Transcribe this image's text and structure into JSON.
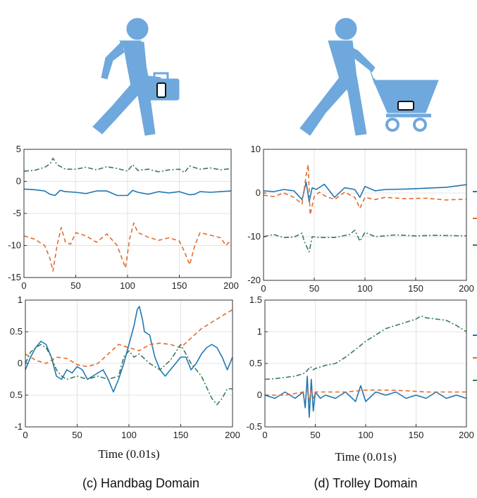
{
  "colors": {
    "series1": "#1f77b4",
    "series2": "#e36c2c",
    "series3": "#3a7a5a",
    "icon": "#6fa8dc",
    "grid": "#e3e3e3"
  },
  "icons": {
    "left": "walking-person-with-handbag-icon",
    "right": "walking-person-pushing-trolley-icon"
  },
  "captions": {
    "left": "(c) Handbag Domain",
    "right": "(d) Trolley Domain"
  },
  "chart_data": [
    {
      "type": "line",
      "panel": "top-left",
      "xlim": [
        0,
        200
      ],
      "ylim": [
        -15,
        5
      ],
      "xticks": [
        "0",
        "50",
        "100",
        "150",
        "200"
      ],
      "yticks": [
        "5",
        "0",
        "-5",
        "-10",
        "-15"
      ],
      "xlabel": "",
      "grid": true,
      "series": [
        {
          "style": "solid",
          "x": [
            0,
            10,
            20,
            25,
            30,
            35,
            40,
            50,
            60,
            70,
            80,
            90,
            100,
            105,
            110,
            120,
            130,
            140,
            150,
            160,
            165,
            170,
            180,
            190,
            200
          ],
          "values": [
            -1.2,
            -1.3,
            -1.5,
            -2.0,
            -2.2,
            -1.4,
            -1.6,
            -1.7,
            -1.9,
            -1.5,
            -1.5,
            -2.2,
            -2.2,
            -1.4,
            -1.7,
            -2.0,
            -1.6,
            -1.8,
            -1.6,
            -2.1,
            -2.0,
            -1.6,
            -1.7,
            -1.6,
            -1.5
          ]
        },
        {
          "style": "dashed",
          "x": [
            0,
            10,
            20,
            25,
            28,
            32,
            36,
            40,
            45,
            50,
            60,
            70,
            80,
            90,
            98,
            102,
            106,
            110,
            120,
            130,
            140,
            150,
            155,
            160,
            165,
            170,
            180,
            190,
            195,
            200
          ],
          "values": [
            -8.5,
            -9,
            -10,
            -12,
            -14,
            -10,
            -7.2,
            -9.5,
            -9.8,
            -8,
            -8.5,
            -9.5,
            -8.2,
            -10,
            -13.5,
            -9,
            -6.5,
            -8,
            -8.7,
            -9.2,
            -8.8,
            -9.3,
            -11,
            -13,
            -10,
            -8,
            -8.4,
            -8.8,
            -10,
            -9.2
          ]
        },
        {
          "style": "dashdot",
          "x": [
            0,
            10,
            20,
            25,
            28,
            32,
            40,
            50,
            60,
            70,
            80,
            90,
            100,
            105,
            110,
            120,
            130,
            140,
            150,
            155,
            160,
            170,
            180,
            190,
            200
          ],
          "values": [
            1.6,
            1.7,
            2.2,
            2.7,
            3.6,
            2.6,
            1.9,
            1.9,
            2.2,
            1.8,
            2.3,
            2.0,
            1.6,
            2.6,
            1.7,
            1.9,
            1.5,
            1.8,
            1.9,
            1.4,
            2.4,
            1.9,
            2.1,
            1.8,
            2.0
          ]
        }
      ]
    },
    {
      "type": "line",
      "panel": "top-right",
      "xlim": [
        0,
        200
      ],
      "ylim": [
        -20,
        10
      ],
      "xticks": [
        "0",
        "50",
        "100",
        "150",
        "200"
      ],
      "yticks": [
        "10",
        "0",
        "-10",
        "-20"
      ],
      "xlabel": "",
      "grid": true,
      "series": [
        {
          "style": "solid",
          "x": [
            0,
            10,
            20,
            30,
            38,
            42,
            45,
            48,
            52,
            60,
            70,
            80,
            90,
            95,
            100,
            110,
            120,
            140,
            160,
            180,
            200
          ],
          "values": [
            0.5,
            0.3,
            0.8,
            0.5,
            -1.5,
            2.5,
            -2,
            1.2,
            0.8,
            2,
            -1,
            1.2,
            0.8,
            -1,
            1.5,
            0.5,
            0.8,
            0.9,
            1.1,
            1.3,
            1.9
          ]
        },
        {
          "style": "dashed",
          "x": [
            0,
            10,
            20,
            30,
            38,
            42,
            44,
            46,
            50,
            55,
            60,
            70,
            80,
            90,
            95,
            100,
            110,
            120,
            140,
            160,
            180,
            200
          ],
          "values": [
            -0.5,
            -0.8,
            0,
            -1,
            -2.5,
            4,
            6.5,
            -5,
            -0.8,
            0.2,
            -0.6,
            -1.5,
            0.2,
            -1,
            -3.5,
            -1,
            -1.5,
            -1,
            -1.3,
            -1.2,
            -1.6,
            -1.4
          ]
        },
        {
          "style": "dashdot",
          "x": [
            0,
            10,
            20,
            30,
            38,
            40,
            43,
            45,
            48,
            55,
            70,
            85,
            90,
            95,
            100,
            110,
            130,
            150,
            170,
            200
          ],
          "values": [
            -10,
            -9.5,
            -10.2,
            -10.1,
            -9.2,
            -11,
            -12.5,
            -13.5,
            -10,
            -10.2,
            -10.2,
            -9.5,
            -8.5,
            -11,
            -9,
            -10,
            -9.6,
            -9.8,
            -9.7,
            -9.8
          ]
        }
      ]
    },
    {
      "type": "line",
      "panel": "bottom-left",
      "xlim": [
        0,
        200
      ],
      "ylim": [
        -1,
        1
      ],
      "xticks": [
        "0",
        "50",
        "100",
        "150",
        "200"
      ],
      "yticks": [
        "1",
        "0.5",
        "0",
        "0.5",
        "-1"
      ],
      "xlabel": "Time (0.01s)",
      "grid": true,
      "series": [
        {
          "style": "solid",
          "x": [
            0,
            5,
            10,
            15,
            20,
            25,
            30,
            35,
            40,
            45,
            50,
            55,
            60,
            65,
            70,
            75,
            80,
            85,
            90,
            95,
            100,
            105,
            108,
            110,
            113,
            115,
            120,
            125,
            130,
            135,
            140,
            145,
            150,
            155,
            160,
            165,
            170,
            175,
            180,
            185,
            190,
            195,
            200
          ],
          "values": [
            -0.1,
            0.1,
            0.25,
            0.35,
            0.3,
            0.1,
            -0.2,
            -0.25,
            -0.1,
            -0.15,
            -0.05,
            -0.1,
            -0.25,
            -0.2,
            -0.15,
            -0.1,
            -0.25,
            -0.45,
            -0.25,
            0,
            0.3,
            0.6,
            0.85,
            0.9,
            0.7,
            0.5,
            0.45,
            0.1,
            -0.1,
            -0.2,
            -0.1,
            0.0,
            0.1,
            0.1,
            -0.1,
            0.0,
            0.15,
            0.25,
            0.3,
            0.25,
            0.1,
            -0.1,
            0.1
          ]
        },
        {
          "style": "dashed",
          "x": [
            0,
            10,
            20,
            30,
            40,
            50,
            60,
            70,
            80,
            90,
            100,
            110,
            120,
            130,
            140,
            150,
            160,
            170,
            180,
            190,
            200
          ],
          "values": [
            0.15,
            0.05,
            0.0,
            0.1,
            0.08,
            -0.02,
            -0.05,
            0.0,
            0.15,
            0.3,
            0.25,
            0.2,
            0.3,
            0.32,
            0.3,
            0.25,
            0.4,
            0.55,
            0.65,
            0.75,
            0.85
          ]
        },
        {
          "style": "dashdot",
          "x": [
            0,
            5,
            10,
            15,
            20,
            25,
            30,
            35,
            40,
            50,
            60,
            70,
            80,
            90,
            95,
            100,
            105,
            110,
            120,
            130,
            140,
            150,
            160,
            170,
            180,
            185,
            190,
            195,
            200
          ],
          "values": [
            0.0,
            0.18,
            0.25,
            0.3,
            0.25,
            0.1,
            -0.1,
            -0.2,
            -0.25,
            -0.2,
            -0.25,
            -0.2,
            -0.25,
            -0.2,
            0.1,
            0.2,
            0.1,
            0.15,
            0.0,
            -0.1,
            0.05,
            0.3,
            0.0,
            -0.2,
            -0.55,
            -0.65,
            -0.55,
            -0.4,
            -0.4
          ]
        }
      ]
    },
    {
      "type": "line",
      "panel": "bottom-right",
      "xlim": [
        0,
        200
      ],
      "ylim": [
        -0.5,
        1.5
      ],
      "xticks": [
        "0",
        "50",
        "100",
        "150",
        "200"
      ],
      "yticks": [
        "1.5",
        "1",
        "0.5",
        "0",
        "-0.5"
      ],
      "xlabel": "Time (0.01s)",
      "grid": true,
      "series": [
        {
          "style": "solid",
          "x": [
            0,
            10,
            20,
            30,
            38,
            40,
            42,
            44,
            46,
            48,
            50,
            55,
            60,
            70,
            80,
            90,
            95,
            100,
            110,
            120,
            130,
            140,
            150,
            160,
            170,
            180,
            190,
            200
          ],
          "values": [
            0,
            -0.05,
            0.05,
            -0.05,
            0.05,
            -0.2,
            0.3,
            -0.35,
            0.25,
            -0.25,
            0.05,
            -0.05,
            0.0,
            -0.05,
            0.05,
            -0.1,
            0.15,
            -0.1,
            0.05,
            0.0,
            0.05,
            -0.05,
            0.0,
            -0.05,
            0.05,
            -0.05,
            0.0,
            -0.05
          ]
        },
        {
          "style": "dashed",
          "x": [
            0,
            20,
            38,
            42,
            44,
            46,
            48,
            50,
            60,
            80,
            100,
            120,
            140,
            160,
            180,
            200
          ],
          "values": [
            0.0,
            0.0,
            0.05,
            0.1,
            -0.1,
            0.1,
            -0.05,
            0.05,
            0.05,
            0.05,
            0.08,
            0.08,
            0.07,
            0.05,
            0.05,
            0.05
          ]
        },
        {
          "style": "dashdot",
          "x": [
            0,
            10,
            20,
            30,
            40,
            45,
            48,
            50,
            60,
            70,
            80,
            90,
            100,
            110,
            120,
            130,
            140,
            150,
            155,
            160,
            170,
            180,
            190,
            200
          ],
          "values": [
            0.25,
            0.26,
            0.28,
            0.3,
            0.35,
            0.45,
            0.4,
            0.42,
            0.47,
            0.5,
            0.6,
            0.72,
            0.85,
            0.95,
            1.05,
            1.1,
            1.15,
            1.2,
            1.25,
            1.22,
            1.2,
            1.18,
            1.1,
            1.0
          ]
        }
      ]
    }
  ]
}
